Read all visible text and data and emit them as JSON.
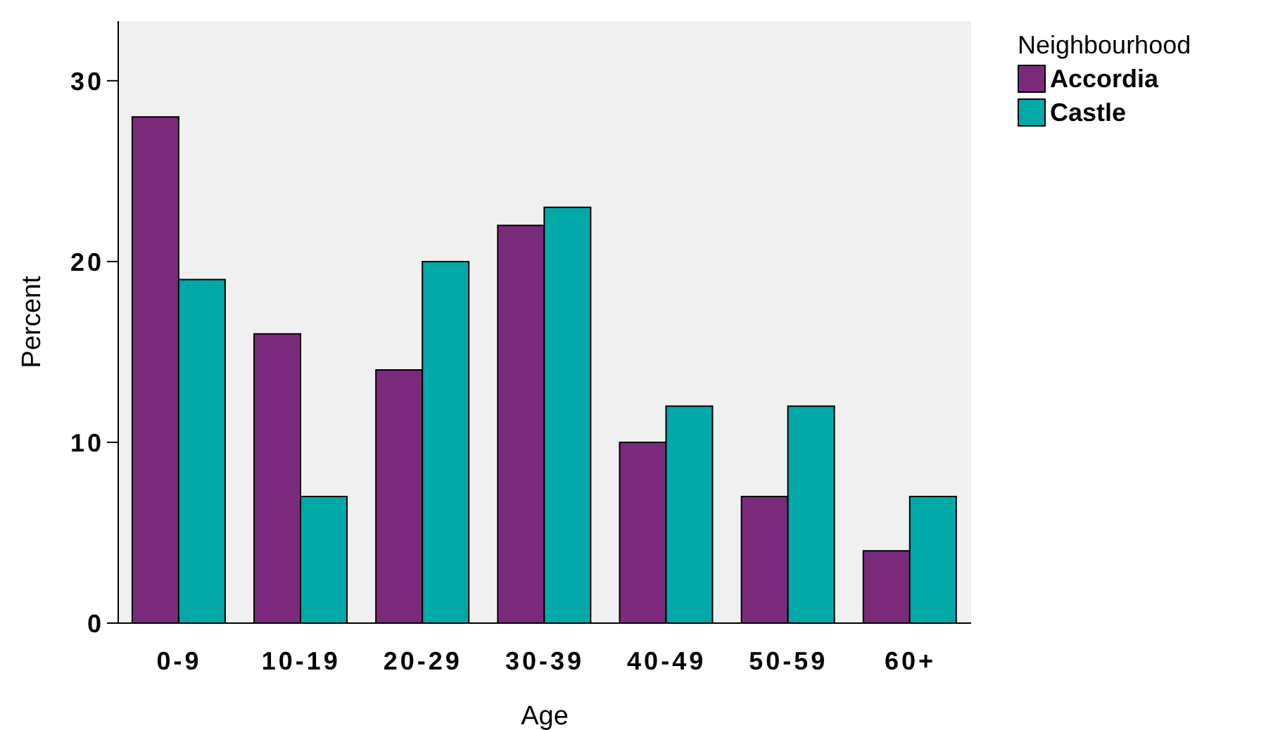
{
  "chart_data": {
    "type": "bar",
    "xlabel": "Age",
    "ylabel": "Percent",
    "legend_title": "Neighbourhood",
    "categories": [
      "0-9",
      "10-19",
      "20-29",
      "30-39",
      "40-49",
      "50-59",
      "60+"
    ],
    "series": [
      {
        "name": "Accordia",
        "color": "#7b2a7b",
        "values": [
          28,
          16,
          14,
          22,
          10,
          7,
          4
        ]
      },
      {
        "name": "Castle",
        "color": "#00a8a8",
        "values": [
          19,
          7,
          20,
          23,
          12,
          12,
          7
        ]
      }
    ],
    "ylim": [
      0,
      33.3
    ],
    "yticks": [
      0,
      10,
      20,
      30
    ],
    "grid": false,
    "legend": "top right"
  }
}
